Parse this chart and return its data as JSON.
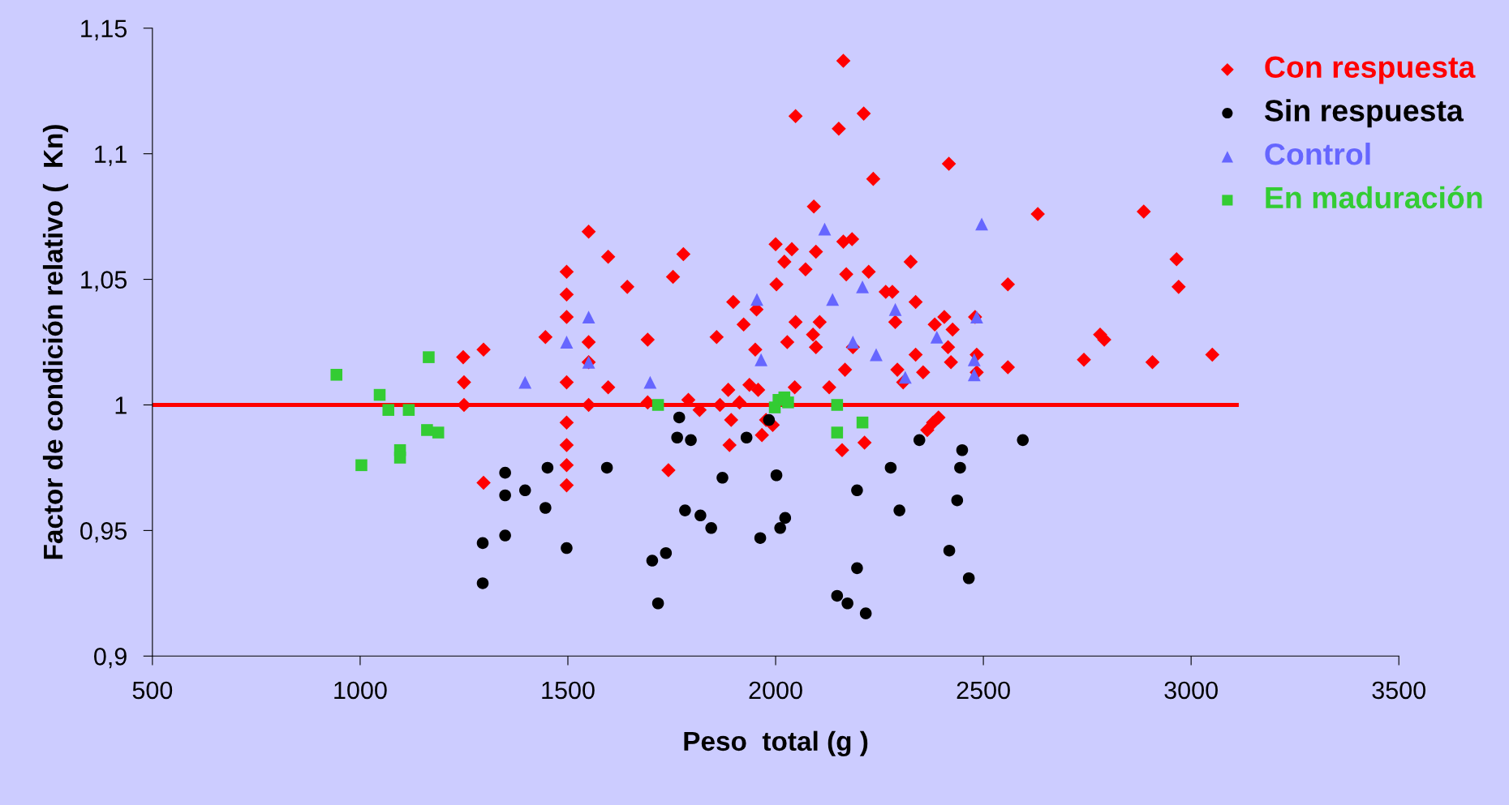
{
  "chart_data": {
    "type": "scatter",
    "xlabel": "Peso  total (g )",
    "ylabel": "Factor de condición relativo (  Kn)",
    "xlim": [
      500,
      3500
    ],
    "xticks": [
      500,
      1000,
      1500,
      2000,
      2500,
      3000,
      3500
    ],
    "ylim": [
      0.9,
      1.15
    ],
    "yticks": [
      {
        "value": 0.9,
        "label": "0,9"
      },
      {
        "value": 0.95,
        "label": "0,95"
      },
      {
        "value": 1,
        "label": "1"
      },
      {
        "value": 1.05,
        "label": "1,05"
      },
      {
        "value": 1.1,
        "label": "1,1"
      },
      {
        "value": 1.15,
        "label": "1,15"
      }
    ],
    "grid": false,
    "legend": "top right",
    "series": [
      {
        "name": "Con respuesta",
        "color": "#ff0000",
        "marker": "diamond",
        "x": [
          1248,
          1250,
          1250,
          1297,
          1297,
          1446,
          1497,
          1497,
          1497,
          1497,
          1497,
          1497,
          1497,
          1497,
          1550,
          1550,
          1550,
          1550,
          1597,
          1597,
          1643,
          1692,
          1692,
          1742,
          1753,
          1778,
          1790,
          1817,
          1858,
          1866,
          1886,
          1889,
          1893,
          1898,
          1913,
          1923,
          1937,
          1951,
          1954,
          1958,
          1967,
          1977,
          1993,
          2000,
          2002,
          2021,
          2028,
          2039,
          2048,
          2048,
          2046,
          2072,
          2090,
          2092,
          2097,
          2097,
          2106,
          2129,
          2152,
          2163,
          2163,
          2170,
          2160,
          2167,
          2184,
          2186,
          2212,
          2214,
          2224,
          2235,
          2265,
          2281,
          2288,
          2293,
          2307,
          2325,
          2337,
          2337,
          2355,
          2365,
          2379,
          2383,
          2392,
          2406,
          2415,
          2417,
          2422,
          2426,
          2480,
          2484,
          2484,
          2559,
          2559,
          2631,
          2742,
          2781,
          2791,
          2886,
          2907,
          2965,
          2970,
          3051
        ],
        "values": [
          1.019,
          1.009,
          1.0,
          1.022,
          0.969,
          1.027,
          1.053,
          1.044,
          1.035,
          1.009,
          0.993,
          0.984,
          0.976,
          0.968,
          1.069,
          1.025,
          1.017,
          1.0,
          1.007,
          1.059,
          1.047,
          1.026,
          1.001,
          0.974,
          1.051,
          1.06,
          1.002,
          0.998,
          1.027,
          1.0,
          1.006,
          0.984,
          0.994,
          1.041,
          1.001,
          1.032,
          1.008,
          1.022,
          1.038,
          1.006,
          0.988,
          0.994,
          0.992,
          1.064,
          1.048,
          1.057,
          1.025,
          1.062,
          1.115,
          1.033,
          1.007,
          1.054,
          1.028,
          1.079,
          1.061,
          1.023,
          1.033,
          1.007,
          1.11,
          1.137,
          1.065,
          1.052,
          0.982,
          1.014,
          1.066,
          1.023,
          1.116,
          0.985,
          1.053,
          1.09,
          1.045,
          1.045,
          1.033,
          1.014,
          1.009,
          1.057,
          1.041,
          1.02,
          1.013,
          0.99,
          0.993,
          1.032,
          0.995,
          1.035,
          1.023,
          1.096,
          1.017,
          1.03,
          1.035,
          1.02,
          1.013,
          1.048,
          1.015,
          1.076,
          1.018,
          1.028,
          1.026,
          1.077,
          1.017,
          1.058,
          1.047,
          1.02
        ]
      },
      {
        "name": "Sin respuesta",
        "color": "#000000",
        "marker": "circle",
        "x": [
          1295,
          1295,
          1349,
          1349,
          1349,
          1397,
          1446,
          1451,
          1497,
          1594,
          1703,
          1717,
          1736,
          1763,
          1782,
          1768,
          1796,
          1819,
          1845,
          1872,
          1930,
          1963,
          1984,
          2002,
          2011,
          2023,
          2148,
          2173,
          2196,
          2196,
          2217,
          2277,
          2298,
          2346,
          2418,
          2437,
          2444,
          2449,
          2465,
          2595
        ],
        "values": [
          0.945,
          0.929,
          0.973,
          0.964,
          0.948,
          0.966,
          0.959,
          0.975,
          0.943,
          0.975,
          0.938,
          0.921,
          0.941,
          0.987,
          0.958,
          0.995,
          0.986,
          0.956,
          0.951,
          0.971,
          0.987,
          0.947,
          0.994,
          0.972,
          0.951,
          0.955,
          0.924,
          0.921,
          0.966,
          0.935,
          0.917,
          0.975,
          0.958,
          0.986,
          0.942,
          0.962,
          0.975,
          0.982,
          0.931,
          0.986
        ]
      },
      {
        "name": "Control",
        "color": "#6666ff",
        "marker": "triangle",
        "x": [
          1397,
          1497,
          1550,
          1550,
          1698,
          1955,
          1965,
          2118,
          2137,
          2186,
          2209,
          2242,
          2288,
          2312,
          2388,
          2478,
          2478,
          2484,
          2496
        ],
        "values": [
          1.009,
          1.025,
          1.035,
          1.017,
          1.009,
          1.042,
          1.018,
          1.07,
          1.042,
          1.025,
          1.047,
          1.02,
          1.038,
          1.011,
          1.027,
          1.018,
          1.012,
          1.035,
          1.072
        ]
      },
      {
        "name": "En maduración",
        "color": "#33cc33",
        "marker": "square",
        "x": [
          943,
          1003,
          1047,
          1068,
          1117,
          1096,
          1096,
          1165,
          1161,
          1188,
          1717,
          1998,
          2007,
          2021,
          2030,
          2148,
          2148,
          2209
        ],
        "values": [
          1.012,
          0.976,
          1.004,
          0.998,
          0.998,
          0.982,
          0.979,
          1.019,
          0.99,
          0.989,
          1.0,
          0.999,
          1.002,
          1.003,
          1.001,
          1.0,
          0.989,
          0.993
        ]
      },
      {
        "type": "line",
        "color": "#ff0000",
        "marker": "none",
        "x": [
          500,
          3110
        ],
        "values": [
          1,
          1
        ]
      }
    ]
  }
}
